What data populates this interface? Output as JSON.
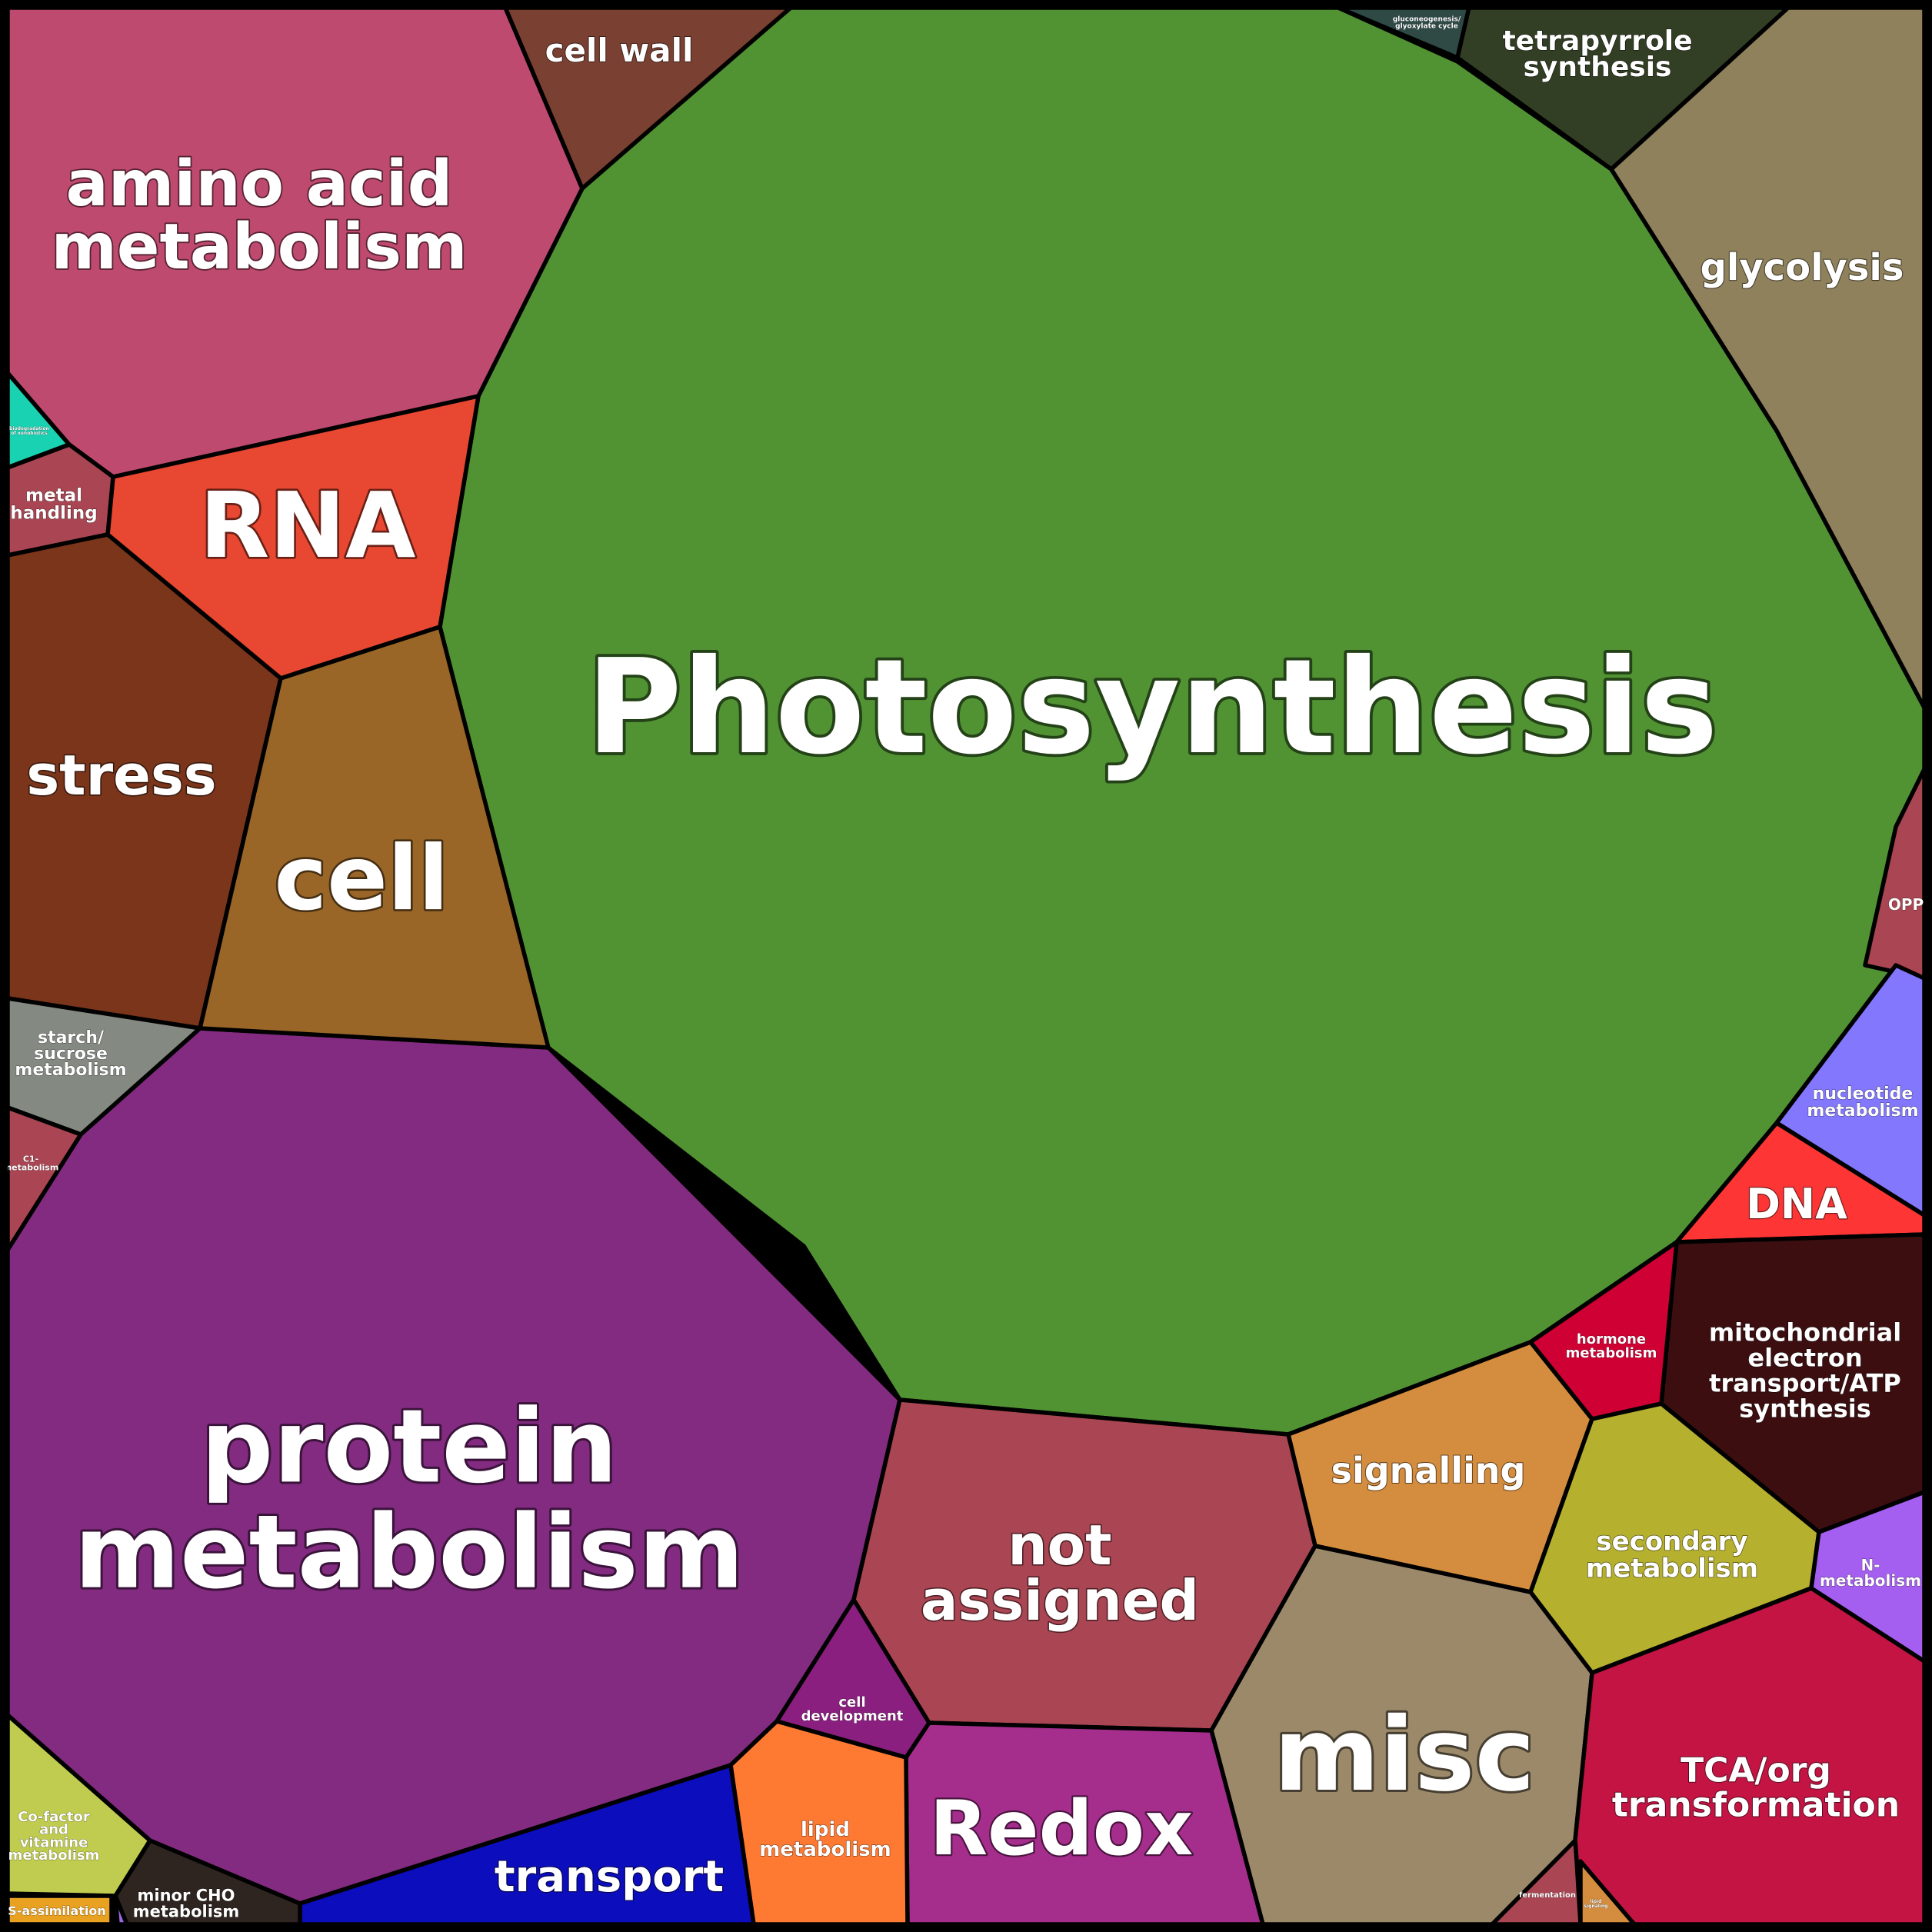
{
  "diagram": {
    "type": "voronoi-treemap",
    "cells": [
      {
        "id": "photosynthesis",
        "label": [
          "Photosynthesis"
        ],
        "color": "#519333"
      },
      {
        "id": "protein-metabolism",
        "label": [
          "protein",
          "metabolism"
        ],
        "color": "#822b80"
      },
      {
        "id": "amino-acid-metabolism",
        "label": [
          "amino acid",
          "metabolism"
        ],
        "color": "#bf4a6f"
      },
      {
        "id": "cell-wall",
        "label": [
          "cell wall"
        ],
        "color": "#7a4032"
      },
      {
        "id": "gluconeogenesis",
        "label": [
          "gluconeogenesis/",
          "glyoxylate cycle"
        ],
        "color": "#2f4a45"
      },
      {
        "id": "tetrapyrrole-synthesis",
        "label": [
          "tetrapyrrole",
          "synthesis"
        ],
        "color": "#333f24"
      },
      {
        "id": "glycolysis",
        "label": [
          "glycolysis"
        ],
        "color": "#8e815c"
      },
      {
        "id": "rna",
        "label": [
          "RNA"
        ],
        "color": "#e84731"
      },
      {
        "id": "teal-small",
        "label": [
          "biodegradation",
          "of xenobiotics"
        ],
        "color": "#19d2b1"
      },
      {
        "id": "metal-handling",
        "label": [
          "metal",
          "handling"
        ],
        "color": "#aa4653"
      },
      {
        "id": "stress",
        "label": [
          "stress"
        ],
        "color": "#7a351b"
      },
      {
        "id": "cell",
        "label": [
          "cell"
        ],
        "color": "#9a6628"
      },
      {
        "id": "starch-sucrose",
        "label": [
          "starch/",
          "sucrose",
          "metabolism"
        ],
        "color": "#848a82"
      },
      {
        "id": "c1-metabolism",
        "label": [
          "C1-",
          "metabolism"
        ],
        "color": "#aa4653"
      },
      {
        "id": "opp",
        "label": [
          "OPP"
        ],
        "color": "#aa4653"
      },
      {
        "id": "nucleotide-metabolism",
        "label": [
          "nucleotide",
          "metabolism"
        ],
        "color": "#8277fd"
      },
      {
        "id": "dna",
        "label": [
          "DNA"
        ],
        "color": "#fe3535"
      },
      {
        "id": "mitochondrial",
        "label": [
          "mitochondrial",
          "electron",
          "transport/ATP",
          "synthesis"
        ],
        "color": "#3d0e10"
      },
      {
        "id": "hormone-metabolism",
        "label": [
          "hormone",
          "metabolism"
        ],
        "color": "#cf0034"
      },
      {
        "id": "signalling",
        "label": [
          "signalling"
        ],
        "color": "#d48d3e"
      },
      {
        "id": "not-assigned",
        "label": [
          "not",
          "assigned"
        ],
        "color": "#aa4653"
      },
      {
        "id": "secondary-metabolism",
        "label": [
          "secondary",
          "metabolism"
        ],
        "color": "#b6b02f"
      },
      {
        "id": "n-metabolism",
        "label": [
          "N-",
          "metabolism"
        ],
        "color": "#a55ff0"
      },
      {
        "id": "misc",
        "label": [
          "misc"
        ],
        "color": "#9b896a"
      },
      {
        "id": "tca",
        "label": [
          "TCA/org",
          "transformation"
        ],
        "color": "#c31444"
      },
      {
        "id": "fermentation",
        "label": [
          "fermentation"
        ],
        "color": "#aa4653"
      },
      {
        "id": "lipid-orange-small",
        "label": [
          "lipid",
          "signaling"
        ],
        "color": "#d48d3e"
      },
      {
        "id": "redox",
        "label": [
          "Redox"
        ],
        "color": "#a52e8d"
      },
      {
        "id": "cell-development",
        "label": [
          "cell",
          "development"
        ],
        "color": "#8a1f7f"
      },
      {
        "id": "lipid-metabolism",
        "label": [
          "lipid",
          "metabolism"
        ],
        "color": "#fe7a33"
      },
      {
        "id": "transport",
        "label": [
          "transport"
        ],
        "color": "#0c0dbd"
      },
      {
        "id": "minor-cho",
        "label": [
          "minor CHO",
          "metabolism"
        ],
        "color": "#2e2420"
      },
      {
        "id": "cofactor",
        "label": [
          "Co-factor",
          "and",
          "vitamine",
          "metabolism"
        ],
        "color": "#c0cc4f"
      },
      {
        "id": "s-assimilation",
        "label": [
          "S-assimilation"
        ],
        "color": "#e9a122"
      },
      {
        "id": "purple-sliver",
        "label": [],
        "color": "#9a67e4"
      }
    ]
  }
}
